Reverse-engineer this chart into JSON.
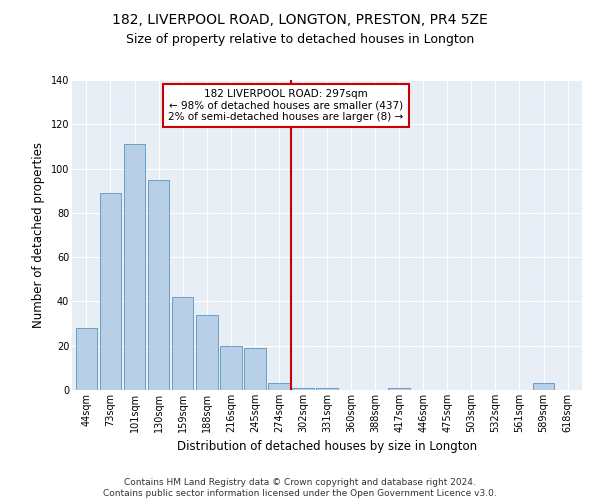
{
  "title1": "182, LIVERPOOL ROAD, LONGTON, PRESTON, PR4 5ZE",
  "title2": "Size of property relative to detached houses in Longton",
  "xlabel": "Distribution of detached houses by size in Longton",
  "ylabel": "Number of detached properties",
  "categories": [
    "44sqm",
    "73sqm",
    "101sqm",
    "130sqm",
    "159sqm",
    "188sqm",
    "216sqm",
    "245sqm",
    "274sqm",
    "302sqm",
    "331sqm",
    "360sqm",
    "388sqm",
    "417sqm",
    "446sqm",
    "475sqm",
    "503sqm",
    "532sqm",
    "561sqm",
    "589sqm",
    "618sqm"
  ],
  "values": [
    28,
    89,
    111,
    95,
    42,
    34,
    20,
    19,
    3,
    1,
    1,
    0,
    0,
    1,
    0,
    0,
    0,
    0,
    0,
    3,
    0
  ],
  "bar_color": "#b8cfe8",
  "bar_edge_color": "#6d9ec4",
  "vline_x": 8.5,
  "vline_color": "#cc0000",
  "annotation_text": "182 LIVERPOOL ROAD: 297sqm\n← 98% of detached houses are smaller (437)\n2% of semi-detached houses are larger (8) →",
  "annotation_box_color": "white",
  "annotation_box_edge": "#cc0000",
  "ylim": [
    0,
    140
  ],
  "yticks": [
    0,
    20,
    40,
    60,
    80,
    100,
    120,
    140
  ],
  "background_color": "#e8eef5",
  "footer": "Contains HM Land Registry data © Crown copyright and database right 2024.\nContains public sector information licensed under the Open Government Licence v3.0.",
  "title1_fontsize": 10,
  "title2_fontsize": 9,
  "xlabel_fontsize": 8.5,
  "ylabel_fontsize": 8.5,
  "footer_fontsize": 6.5,
  "annot_fontsize": 7.5,
  "tick_fontsize": 7
}
